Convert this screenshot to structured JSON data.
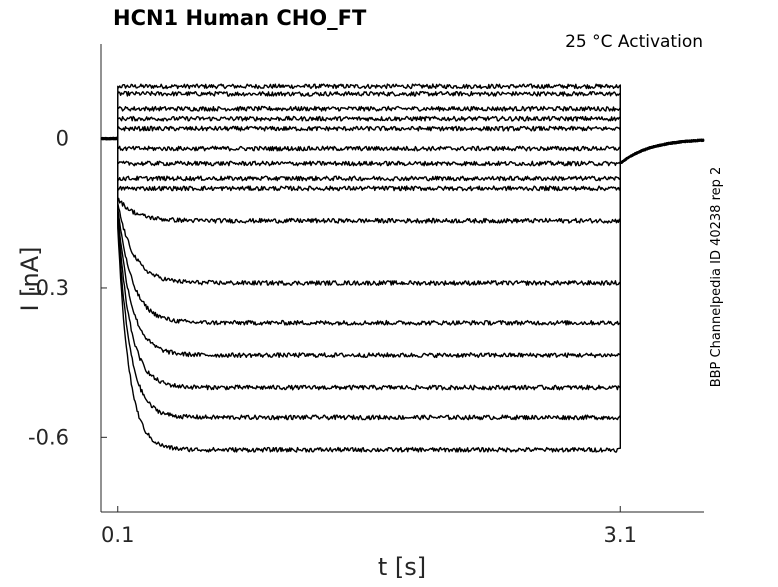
{
  "chart_data": {
    "type": "line",
    "title": "HCN1  Human  CHO_FT",
    "subtitle": "25 °C  Activation",
    "xlabel": "t [s]",
    "ylabel": "I [nA]",
    "xlim": [
      0.0,
      3.6
    ],
    "ylim": [
      -0.75,
      0.19
    ],
    "xticks": [
      0.1,
      3.1
    ],
    "xtick_labels": [
      "0.1",
      "3.1"
    ],
    "yticks": [
      0,
      -0.3,
      -0.6
    ],
    "ytick_labels": [
      "0",
      "-0.3",
      "-0.6"
    ],
    "step_start": 0.1,
    "step_end": 3.1,
    "holding_current": 0.0,
    "tail_current": -0.05,
    "trace_color": "#000000",
    "side_note": "BBP Channelpedia ID 40238 rep 2",
    "grid": false,
    "series": [
      {
        "step_start": 0.105,
        "initial": 0.105,
        "steady": 0.105
      },
      {
        "step_start": 0.09,
        "initial": 0.09,
        "steady": 0.09
      },
      {
        "step_start": 0.06,
        "initial": 0.06,
        "steady": 0.06
      },
      {
        "step_start": 0.04,
        "initial": 0.04,
        "steady": 0.04
      },
      {
        "step_start": 0.02,
        "initial": 0.02,
        "steady": 0.02
      },
      {
        "step_start": -0.02,
        "initial": -0.02,
        "steady": -0.02
      },
      {
        "step_start": -0.05,
        "initial": -0.05,
        "steady": -0.05
      },
      {
        "step_start": -0.08,
        "initial": -0.08,
        "steady": -0.08
      },
      {
        "step_start": -0.1,
        "initial": -0.1,
        "steady": -0.1
      },
      {
        "step_start": -0.12,
        "initial": -0.12,
        "steady": -0.165
      },
      {
        "step_start": -0.13,
        "initial": -0.13,
        "steady": -0.29
      },
      {
        "step_start": -0.14,
        "initial": -0.14,
        "steady": -0.37
      },
      {
        "step_start": -0.15,
        "initial": -0.15,
        "steady": -0.435
      },
      {
        "step_start": -0.16,
        "initial": -0.16,
        "steady": -0.5
      },
      {
        "step_start": -0.17,
        "initial": -0.17,
        "steady": -0.56
      },
      {
        "step_start": -0.18,
        "initial": -0.18,
        "steady": -0.625
      }
    ]
  }
}
